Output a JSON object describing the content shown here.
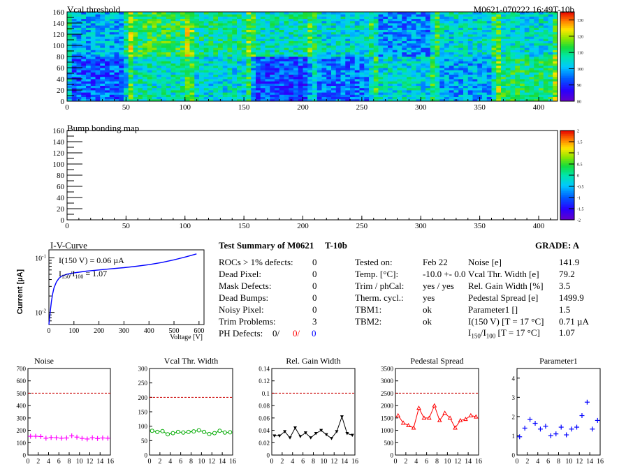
{
  "header": {
    "vcal_title": "Vcal threshold",
    "module_id": "M0621-070222.16:49T-10b",
    "bump_title": "Bump bonding map"
  },
  "colors": {
    "sub_blue": "#0000ff",
    "noise": "#ff00ff",
    "vcal": "#00aa00",
    "gain": "#000000",
    "pedestal": "#ff0000",
    "param": "#0000ff",
    "ref_line": "#cc0000"
  },
  "iv": {
    "title": "I-V-Curve",
    "ylabel": "Current [µA]",
    "xlabel": "Voltage [V]",
    "ann1": "I(150 V) = 0.06 µA",
    "ann2_a": "I",
    "ann2_b": "150",
    "ann2_c": "/I",
    "ann2_d": "100",
    "ann2_e": " = 1.07"
  },
  "summary": {
    "title": "Test Summary of M0621",
    "code": "T-10b",
    "grade": "GRADE:  A",
    "left": [
      {
        "label": "ROCs > 1% defects:",
        "value": "0"
      },
      {
        "label": "Dead Pixel:",
        "value": "0"
      },
      {
        "label": "Mask Defects:",
        "value": "0"
      },
      {
        "label": "Dead Bumps:",
        "value": "0"
      },
      {
        "label": "Noisy Pixel:",
        "value": "0"
      },
      {
        "label": "Trim Problems:",
        "value": "3"
      }
    ],
    "ph_label": "PH Defects:",
    "ph_v1": "0/",
    "ph_v2": "0/",
    "ph_v3": "0",
    "mid": [
      {
        "label": "Tested on:",
        "value": "Feb 22"
      },
      {
        "label": "Temp. [°C]:",
        "value": "-10.0 +- 0.0"
      },
      {
        "label": "Trim / phCal:",
        "value": "yes / yes"
      },
      {
        "label": "Therm. cycl.:",
        "value": "yes"
      },
      {
        "label": "TBM1:",
        "value": "ok"
      },
      {
        "label": "TBM2:",
        "value": "ok"
      }
    ],
    "right": [
      {
        "label": "Noise [e]",
        "value": "141.9"
      },
      {
        "label": "Vcal Thr. Width [e]",
        "value": "79.2"
      },
      {
        "label": "Rel. Gain Width [%]",
        "value": "3.5"
      },
      {
        "label": "Pedestal Spread [e]",
        "value": "1499.9"
      },
      {
        "label": "Parameter1 []",
        "value": "1.5"
      },
      {
        "label": "I(150 V) [T = 17 °C]",
        "value": "0.71 µA"
      }
    ],
    "ratio_a": "I",
    "ratio_b": "150",
    "ratio_c": "/I",
    "ratio_d": "100",
    "ratio_e": "  [T = 17 °C]",
    "ratio_value": "1.07"
  },
  "chart_data": [
    {
      "type": "heatmap",
      "title": "Vcal threshold",
      "xlim": [
        0,
        416
      ],
      "ylim": [
        0,
        160
      ],
      "xticks": [
        "0",
        "50",
        "100",
        "150",
        "200",
        "250",
        "300",
        "350",
        "400"
      ],
      "yticks": [
        "0",
        "20",
        "40",
        "60",
        "80",
        "100",
        "120",
        "140",
        "160"
      ],
      "zticks": [
        "80",
        "90",
        "100",
        "110",
        "120",
        "130"
      ],
      "zlim": [
        80,
        135
      ],
      "roc_means": [
        [
          100,
          112,
          108,
          106,
          104,
          97,
          104,
          104
        ],
        [
          94,
          106,
          104,
          92,
          96,
          104,
          99,
          110
        ]
      ]
    },
    {
      "type": "heatmap",
      "title": "Bump bonding map",
      "xlim": [
        0,
        416
      ],
      "ylim": [
        0,
        160
      ],
      "xticks": [
        "0",
        "50",
        "100",
        "150",
        "200",
        "250",
        "300",
        "350",
        "400"
      ],
      "yticks": [
        "0",
        "20",
        "40",
        "60",
        "80",
        "100",
        "120",
        "140",
        "160"
      ],
      "zticks": [
        "-2",
        "-1.5",
        "-1",
        "-0.5",
        "0",
        "0.5",
        "1",
        "1.5",
        "2"
      ],
      "zlim": [
        -2,
        2
      ]
    },
    {
      "type": "line",
      "title": "I-V-Curve",
      "xlabel": "Voltage [V]",
      "ylabel": "Current [µA]",
      "log_y": true,
      "xlim": [
        0,
        620
      ],
      "ylim": [
        0.006,
        0.14
      ],
      "xticks": [
        "0",
        "100",
        "200",
        "300",
        "400",
        "500",
        "600"
      ],
      "yticks": [
        "10^-2",
        "10^-1"
      ],
      "x": [
        0,
        5,
        10,
        15,
        20,
        30,
        40,
        50,
        70,
        100,
        150,
        200,
        250,
        300,
        350,
        400,
        450,
        500,
        550,
        590
      ],
      "y": [
        0.006,
        0.01,
        0.016,
        0.022,
        0.028,
        0.036,
        0.042,
        0.046,
        0.05,
        0.053,
        0.057,
        0.06,
        0.063,
        0.066,
        0.07,
        0.075,
        0.082,
        0.092,
        0.105,
        0.118
      ]
    },
    {
      "type": "scatter",
      "title": "Noise",
      "xlim": [
        0,
        16
      ],
      "ylim": [
        0,
        700
      ],
      "ref": 500,
      "yticks": [
        "0",
        "100",
        "200",
        "300",
        "400",
        "500",
        "600",
        "700"
      ],
      "xticks": [
        "0",
        "2",
        "4",
        "6",
        "8",
        "10",
        "12",
        "14",
        "16"
      ],
      "x": [
        0.5,
        1.5,
        2.5,
        3.5,
        4.5,
        5.5,
        6.5,
        7.5,
        8.5,
        9.5,
        10.5,
        11.5,
        12.5,
        13.5,
        14.5,
        15.5
      ],
      "values": [
        152,
        152,
        150,
        136,
        142,
        140,
        136,
        138,
        155,
        145,
        135,
        130,
        140,
        134,
        138,
        136
      ],
      "marker": "plus"
    },
    {
      "type": "line",
      "title": "Vcal Thr. Width",
      "xlim": [
        0,
        16
      ],
      "ylim": [
        0,
        300
      ],
      "ref": 200,
      "yticks": [
        "0",
        "50",
        "100",
        "150",
        "200",
        "250",
        "300"
      ],
      "xticks": [
        "0",
        "2",
        "4",
        "6",
        "8",
        "10",
        "12",
        "14",
        "16"
      ],
      "x": [
        0.5,
        1.5,
        2.5,
        3.5,
        4.5,
        5.5,
        6.5,
        7.5,
        8.5,
        9.5,
        10.5,
        11.5,
        12.5,
        13.5,
        14.5,
        15.5
      ],
      "values": [
        84,
        80,
        83,
        72,
        76,
        80,
        78,
        80,
        82,
        86,
        80,
        73,
        76,
        84,
        78,
        79
      ],
      "marker": "circle"
    },
    {
      "type": "line",
      "title": "Rel. Gain Width",
      "xlim": [
        0,
        16
      ],
      "ylim": [
        0,
        0.14
      ],
      "ref": 0.1,
      "yticks": [
        "0",
        "0.02",
        "0.04",
        "0.06",
        "0.08",
        "0.1",
        "0.12",
        "0.14"
      ],
      "xticks": [
        "0",
        "2",
        "4",
        "6",
        "8",
        "10",
        "12",
        "14",
        "16"
      ],
      "x": [
        0.5,
        1.5,
        2.5,
        3.5,
        4.5,
        5.5,
        6.5,
        7.5,
        8.5,
        9.5,
        10.5,
        11.5,
        12.5,
        13.5,
        14.5,
        15.5
      ],
      "values": [
        0.031,
        0.031,
        0.038,
        0.028,
        0.044,
        0.03,
        0.036,
        0.028,
        0.035,
        0.04,
        0.033,
        0.027,
        0.038,
        0.062,
        0.035,
        0.032
      ],
      "marker": "triangle-down"
    },
    {
      "type": "line",
      "title": "Pedestal Spread",
      "xlim": [
        0,
        16
      ],
      "ylim": [
        0,
        3500
      ],
      "ref": 2500,
      "yticks": [
        "0",
        "500",
        "1000",
        "1500",
        "2000",
        "2500",
        "3000",
        "3500"
      ],
      "xticks": [
        "0",
        "2",
        "4",
        "6",
        "8",
        "10",
        "12",
        "14",
        "16"
      ],
      "x": [
        0.5,
        1.5,
        2.5,
        3.5,
        4.5,
        5.5,
        6.5,
        7.5,
        8.5,
        9.5,
        10.5,
        11.5,
        12.5,
        13.5,
        14.5,
        15.5
      ],
      "values": [
        1600,
        1300,
        1200,
        1100,
        1900,
        1500,
        1500,
        2000,
        1400,
        1700,
        1500,
        1100,
        1400,
        1450,
        1600,
        1550
      ],
      "marker": "triangle-up"
    },
    {
      "type": "scatter",
      "title": "Parameter1",
      "xlim": [
        0,
        16
      ],
      "ylim": [
        0,
        4.5
      ],
      "yticks": [
        "0",
        "1",
        "2",
        "3",
        "4"
      ],
      "xticks": [
        "0",
        "2",
        "4",
        "6",
        "8",
        "10",
        "12",
        "14",
        "16"
      ],
      "x": [
        0.5,
        1.5,
        2.5,
        3.5,
        4.5,
        5.5,
        6.5,
        7.5,
        8.5,
        9.5,
        10.5,
        11.5,
        12.5,
        13.5,
        14.5,
        15.5
      ],
      "values": [
        0.95,
        1.4,
        1.85,
        1.65,
        1.35,
        1.5,
        1.0,
        1.1,
        1.45,
        1.05,
        1.35,
        1.45,
        2.05,
        2.75,
        1.35,
        1.8
      ],
      "marker": "plus"
    }
  ]
}
